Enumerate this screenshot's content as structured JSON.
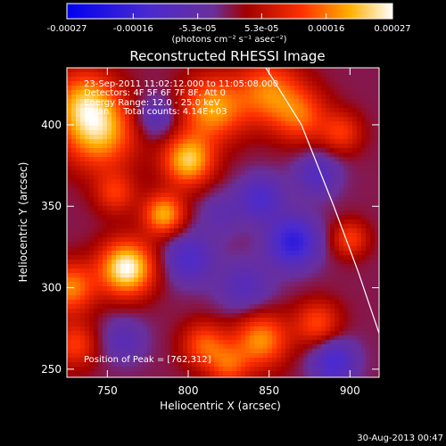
{
  "chart_data": {
    "type": "heatmap",
    "title": "Reconstructed RHESSI Image",
    "xlabel": "Heliocentric X (arcsec)",
    "ylabel": "Heliocentric Y (arcsec)",
    "xlim": [
      725,
      918
    ],
    "ylim": [
      245,
      435
    ],
    "x_ticks": [
      {
        "value": 750,
        "label": "750"
      },
      {
        "value": 800,
        "label": "800"
      },
      {
        "value": 850,
        "label": "850"
      },
      {
        "value": 900,
        "label": "900"
      }
    ],
    "y_ticks": [
      {
        "value": 250,
        "label": "250"
      },
      {
        "value": 300,
        "label": "300"
      },
      {
        "value": 350,
        "label": "350"
      },
      {
        "value": 400,
        "label": "400"
      }
    ],
    "colorbar": {
      "min": -0.00027,
      "max": 0.00027,
      "tick_values": [
        -0.00027,
        -0.00016,
        -5.3e-05,
        5.3e-05,
        0.00016,
        0.00027
      ],
      "tick_labels": [
        "-0.00027",
        "-0.00016",
        "-5.3e-05",
        "5.3e-05",
        "0.00016",
        "0.00027"
      ],
      "unit_label": "(photons cm⁻² s⁻¹ asec⁻²)"
    },
    "annotations": [
      "23-Sep-2011 11:02:12.000 to 11:05:08.000",
      "Detectors: 4F 5F 6F 7F 8F, Att 0",
      "Energy Range: 12.0 - 25.0 keV",
      "Clean     Total counts: 4.14E+03"
    ],
    "peak_label": "Position of Peak = [762,312]",
    "peak": [
      762,
      312
    ],
    "limb_curve": [
      [
        848,
        435
      ],
      [
        870,
        400
      ],
      [
        890,
        350
      ],
      [
        905,
        310
      ],
      [
        918,
        272
      ]
    ],
    "blobs": [
      {
        "x": 762,
        "y": 312,
        "amp": 0.00027,
        "r": 12
      },
      {
        "x": 745,
        "y": 395,
        "amp": 0.0002,
        "r": 16
      },
      {
        "x": 735,
        "y": 415,
        "amp": 0.00016,
        "r": 14
      },
      {
        "x": 727,
        "y": 300,
        "amp": 0.00017,
        "r": 11
      },
      {
        "x": 730,
        "y": 265,
        "amp": 0.00012,
        "r": 10
      },
      {
        "x": 815,
        "y": 410,
        "amp": 0.00019,
        "r": 14
      },
      {
        "x": 850,
        "y": 420,
        "amp": 0.00016,
        "r": 14
      },
      {
        "x": 870,
        "y": 405,
        "amp": 0.00013,
        "r": 12
      },
      {
        "x": 800,
        "y": 378,
        "amp": 0.00022,
        "r": 11
      },
      {
        "x": 785,
        "y": 345,
        "amp": 0.0002,
        "r": 9
      },
      {
        "x": 755,
        "y": 358,
        "amp": 0.00011,
        "r": 9
      },
      {
        "x": 810,
        "y": 265,
        "amp": 0.00014,
        "r": 10
      },
      {
        "x": 845,
        "y": 268,
        "amp": 0.00018,
        "r": 12
      },
      {
        "x": 825,
        "y": 252,
        "amp": 0.00012,
        "r": 9
      },
      {
        "x": 880,
        "y": 278,
        "amp": 0.00013,
        "r": 10
      },
      {
        "x": 900,
        "y": 330,
        "amp": 0.00012,
        "r": 8
      },
      {
        "x": 895,
        "y": 395,
        "amp": 0.00011,
        "r": 9
      },
      {
        "x": 865,
        "y": 328,
        "amp": -0.00018,
        "r": 11
      },
      {
        "x": 845,
        "y": 355,
        "amp": -0.00012,
        "r": 10
      },
      {
        "x": 890,
        "y": 255,
        "amp": -0.00014,
        "r": 10
      },
      {
        "x": 800,
        "y": 318,
        "amp": -0.00012,
        "r": 11
      },
      {
        "x": 780,
        "y": 405,
        "amp": -0.0001,
        "r": 9
      },
      {
        "x": 835,
        "y": 300,
        "amp": -9e-05,
        "r": 12
      },
      {
        "x": 760,
        "y": 268,
        "amp": -8e-05,
        "r": 10
      },
      {
        "x": 880,
        "y": 370,
        "amp": -0.0001,
        "r": 10
      },
      {
        "x": 820,
        "y": 345,
        "amp": -6e-05,
        "r": 10
      }
    ]
  },
  "footer": {
    "timestamp": "30-Aug-2013 00:47"
  }
}
